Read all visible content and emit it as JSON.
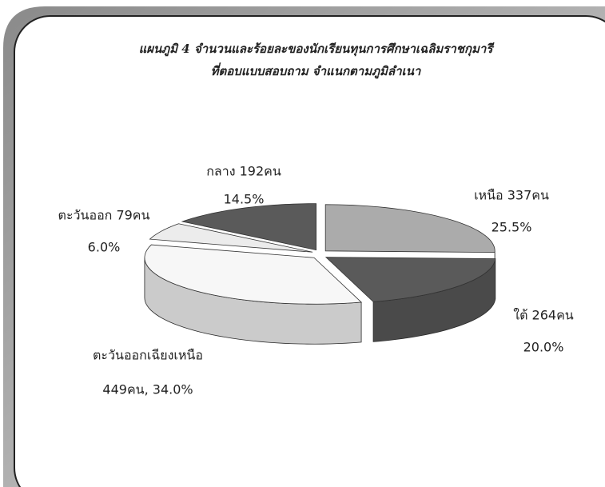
{
  "chart_data": {
    "type": "pie3d",
    "title": "แผนภูมิ 4 จำนวนและร้อยละของนักเรียนทุนการศึกษาเฉลิมราชกุมารี",
    "subtitle": "ที่ตอบแบบสอบถาม  จำแนกตามภูมิลำเนา",
    "categories": [
      "เหนือ 337คน",
      "ใต้ 264คน",
      "ตะวันออกเฉียงเหนือ",
      "ตะวันออก 79คน",
      "กลาง 192คน"
    ],
    "values": [
      25.5,
      20.0,
      34.0,
      6.0,
      14.5
    ],
    "value_labels": [
      "25.5%",
      "20.0%",
      "449คน, 34.0%",
      "6.0%",
      "14.5%"
    ],
    "colors": [
      "#ababab",
      "#5a5a5a",
      "#f7f7f7",
      "#ececec",
      "#5a5a5a"
    ]
  }
}
